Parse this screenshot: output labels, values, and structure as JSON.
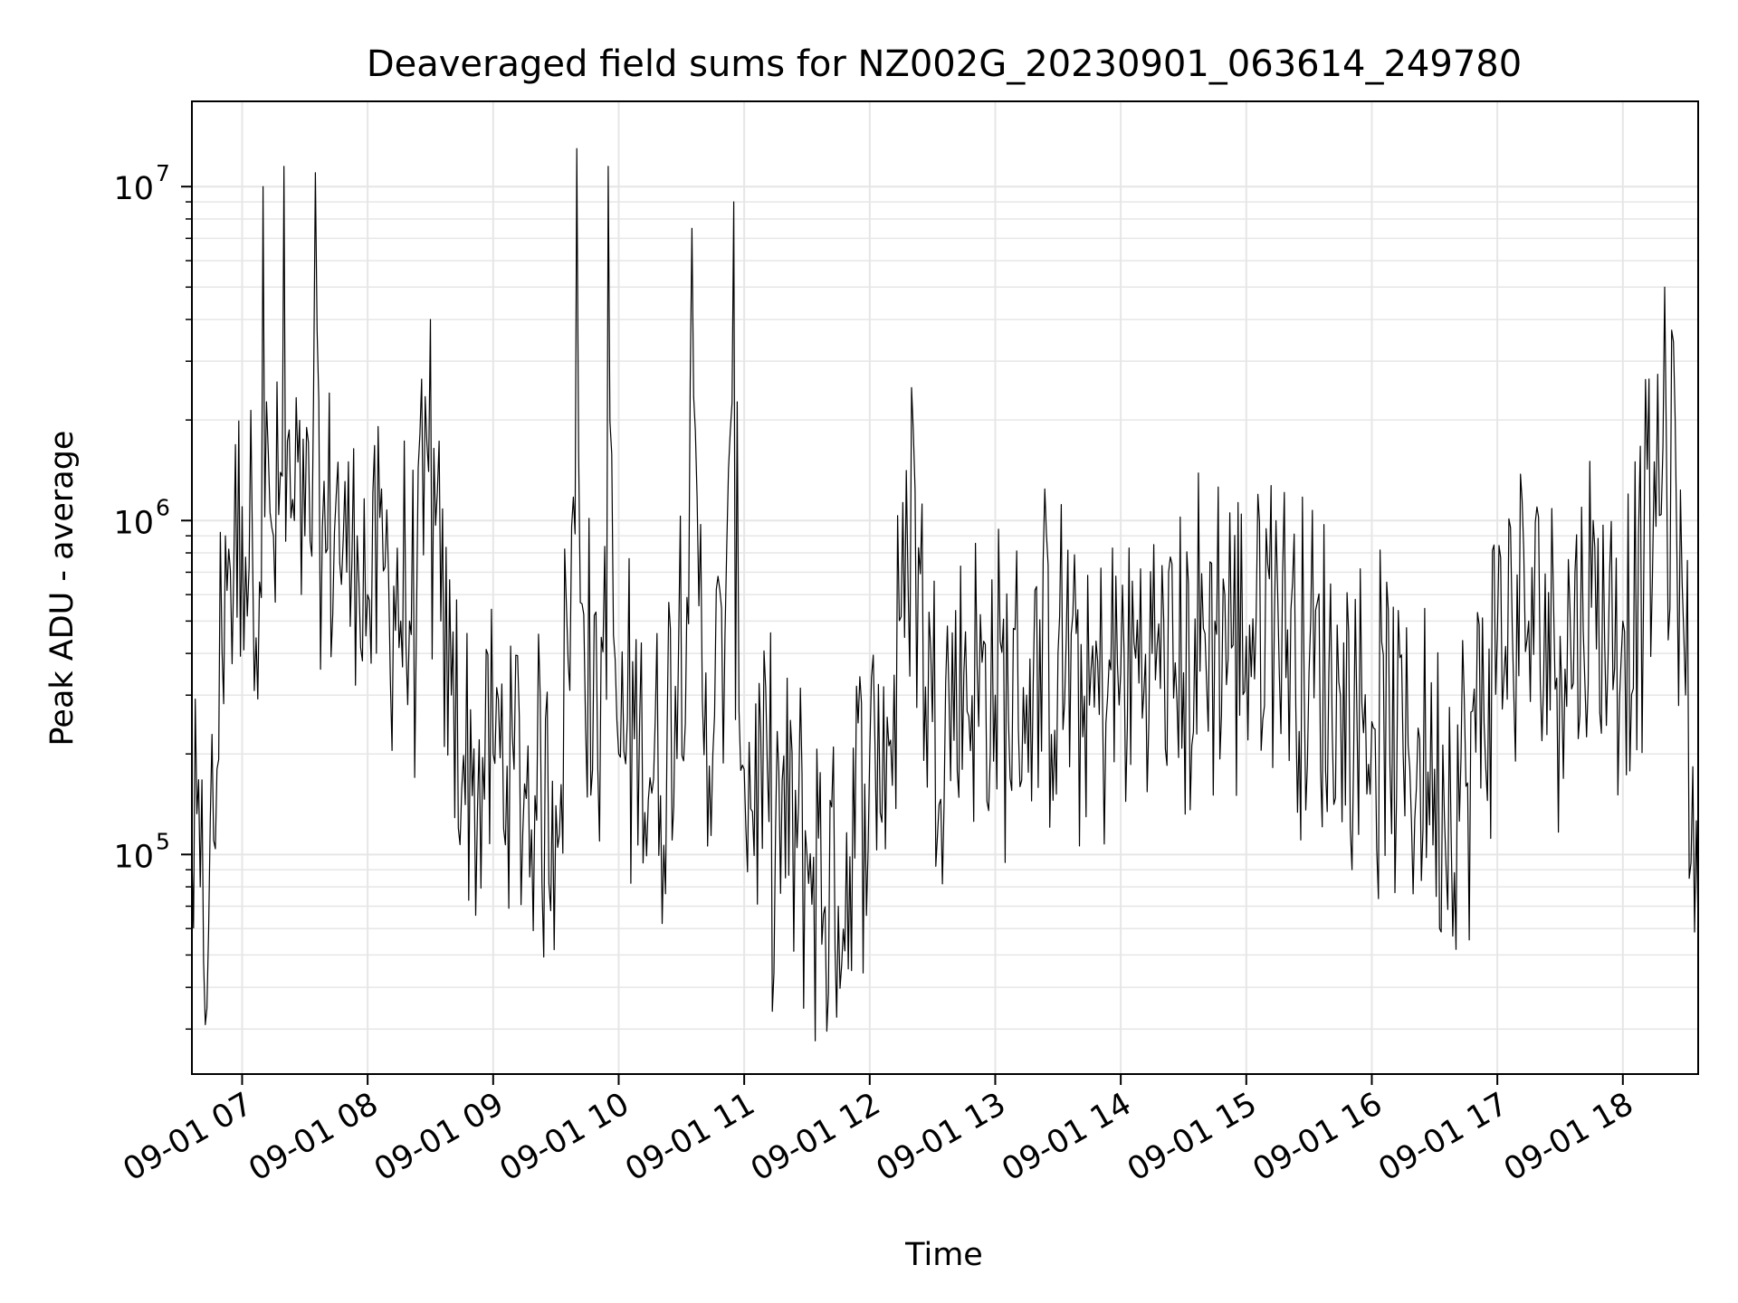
{
  "chart_data": {
    "type": "line",
    "title": "Deaveraged field sums for NZ002G_20230901_063614_249780",
    "xlabel": "Time",
    "ylabel": "Peak ADU - average",
    "yscale": "log",
    "xlim": [
      "2023-09-01 06:36",
      "2023-09-01 18:36"
    ],
    "ylim": [
      22000,
      18000000
    ],
    "grid": true,
    "line_color": "#000000",
    "x_ticks": [
      {
        "hour": 7,
        "label": "09-01 07"
      },
      {
        "hour": 8,
        "label": "09-01 08"
      },
      {
        "hour": 9,
        "label": "09-01 09"
      },
      {
        "hour": 10,
        "label": "09-01 10"
      },
      {
        "hour": 11,
        "label": "09-01 11"
      },
      {
        "hour": 12,
        "label": "09-01 12"
      },
      {
        "hour": 13,
        "label": "09-01 13"
      },
      {
        "hour": 14,
        "label": "09-01 14"
      },
      {
        "hour": 15,
        "label": "09-01 15"
      },
      {
        "hour": 16,
        "label": "09-01 16"
      },
      {
        "hour": 17,
        "label": "09-01 17"
      },
      {
        "hour": 18,
        "label": "09-01 18"
      }
    ],
    "y_ticks": [
      {
        "value": 100000,
        "base": "10",
        "exp": "5"
      },
      {
        "value": 1000000,
        "base": "10",
        "exp": "6"
      },
      {
        "value": 10000000,
        "base": "10",
        "exp": "7"
      }
    ],
    "series": [
      {
        "x": [
          "2023-09-01 06:36",
          "2023-09-01 06:40",
          "2023-09-01 06:44",
          "2023-09-01 06:48",
          "2023-09-01 06:52",
          "2023-09-01 06:56",
          "2023-09-01 07:00",
          "2023-09-01 07:05",
          "2023-09-01 07:10",
          "2023-09-01 07:15",
          "2023-09-01 07:20",
          "2023-09-01 07:25",
          "2023-09-01 07:30",
          "2023-09-01 07:35",
          "2023-09-01 07:40",
          "2023-09-01 07:45",
          "2023-09-01 07:50",
          "2023-09-01 07:55",
          "2023-09-01 08:00",
          "2023-09-01 08:10",
          "2023-09-01 08:20",
          "2023-09-01 08:30",
          "2023-09-01 08:35",
          "2023-09-01 08:40",
          "2023-09-01 08:50",
          "2023-09-01 09:00",
          "2023-09-01 09:10",
          "2023-09-01 09:20",
          "2023-09-01 09:30",
          "2023-09-01 09:40",
          "2023-09-01 09:50",
          "2023-09-01 09:55",
          "2023-09-01 10:00",
          "2023-09-01 10:10",
          "2023-09-01 10:20",
          "2023-09-01 10:35",
          "2023-09-01 10:45",
          "2023-09-01 10:55",
          "2023-09-01 11:00",
          "2023-09-01 11:15",
          "2023-09-01 11:30",
          "2023-09-01 11:45",
          "2023-09-01 12:00",
          "2023-09-01 12:10",
          "2023-09-01 12:20",
          "2023-09-01 12:30",
          "2023-09-01 12:45",
          "2023-09-01 13:00",
          "2023-09-01 13:15",
          "2023-09-01 13:30",
          "2023-09-01 13:45",
          "2023-09-01 14:00",
          "2023-09-01 14:15",
          "2023-09-01 14:30",
          "2023-09-01 14:45",
          "2023-09-01 15:00",
          "2023-09-01 15:15",
          "2023-09-01 15:30",
          "2023-09-01 15:45",
          "2023-09-01 16:00",
          "2023-09-01 16:15",
          "2023-09-01 16:30",
          "2023-09-01 16:45",
          "2023-09-01 17:00",
          "2023-09-01 17:15",
          "2023-09-01 17:30",
          "2023-09-01 17:45",
          "2023-09-01 18:00",
          "2023-09-01 18:10",
          "2023-09-01 18:15",
          "2023-09-01 18:20",
          "2023-09-01 18:25",
          "2023-09-01 18:30",
          "2023-09-01 18:36"
        ],
        "values": [
          100000,
          80000,
          60000,
          180000,
          900000,
          700000,
          1100000,
          800000,
          10000000,
          900000,
          11500000,
          1000000,
          900000,
          11000000,
          800000,
          1200000,
          700000,
          900000,
          600000,
          700000,
          500000,
          4000000,
          500000,
          300000,
          150000,
          200000,
          180000,
          150000,
          140000,
          13000000,
          180000,
          11500000,
          200000,
          250000,
          150000,
          7500000,
          200000,
          9000000,
          180000,
          120000,
          100000,
          70000,
          200000,
          220000,
          2500000,
          250000,
          350000,
          300000,
          300000,
          400000,
          280000,
          350000,
          400000,
          350000,
          500000,
          450000,
          600000,
          350000,
          300000,
          250000,
          200000,
          180000,
          160000,
          450000,
          500000,
          450000,
          550000,
          500000,
          700000,
          1500000,
          5000000,
          2000000,
          300000,
          60000
        ]
      }
    ]
  }
}
